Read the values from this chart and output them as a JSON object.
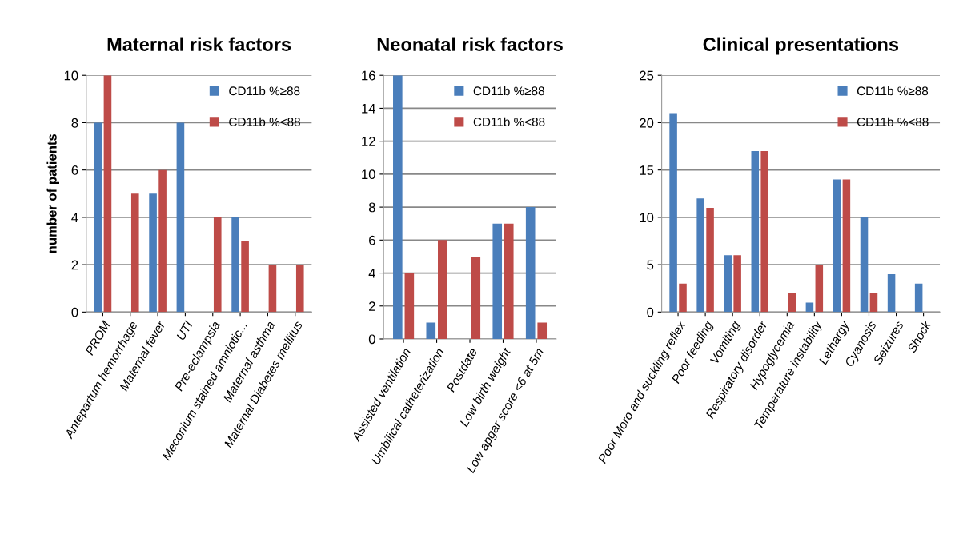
{
  "chart_data": [
    {
      "type": "bar",
      "title": "Maternal risk factors",
      "ylabel": "number of patients",
      "categories": [
        "PROM",
        "Antepartum hemorrhage",
        "Maternal fever",
        "UTI",
        "Pre-eclampsia",
        "Meconium stained amniotic...",
        "Maternal asthma",
        "Maternal Diabetes mellitus"
      ],
      "series": [
        {
          "name": "CD11b %≥88",
          "color": "#4a7ebb",
          "values": [
            8,
            0,
            5,
            8,
            0,
            4,
            0,
            0
          ]
        },
        {
          "name": "CD11b %<88",
          "color": "#be4b48",
          "values": [
            10,
            5,
            6,
            0,
            4,
            3,
            2,
            2
          ]
        }
      ],
      "ylim": [
        0,
        10
      ],
      "yticks": [
        0,
        2,
        4,
        6,
        8,
        10
      ],
      "grid": "y",
      "legend": "top right"
    },
    {
      "type": "bar",
      "title": "Neonatal risk factors",
      "categories": [
        "Assisted ventilation",
        "Umbilical catheterization",
        "Postdate",
        "Low birth weight",
        "Low apgar score <6 at 5m"
      ],
      "series": [
        {
          "name": "CD11b %≥88",
          "color": "#4a7ebb",
          "values": [
            16,
            1,
            0,
            7,
            8
          ]
        },
        {
          "name": "CD11b %<88",
          "color": "#be4b48",
          "values": [
            4,
            6,
            5,
            7,
            1
          ]
        }
      ],
      "ylim": [
        0,
        16
      ],
      "yticks": [
        0,
        2,
        4,
        6,
        8,
        10,
        12,
        14,
        16
      ],
      "grid": "y",
      "legend": "top right"
    },
    {
      "type": "bar",
      "title": "Clinical presentations",
      "categories": [
        "Poor Moro and suckling reflex",
        "Poor feeding",
        "Vomiting",
        "Respiratory disorder",
        "Hypoglycemia",
        "Temperature instability",
        "Lethargy",
        "Cyanosis",
        "Seizures",
        "Shock"
      ],
      "series": [
        {
          "name": "CD11b %≥88",
          "color": "#4a7ebb",
          "values": [
            21,
            12,
            6,
            17,
            0,
            1,
            14,
            10,
            4,
            3
          ]
        },
        {
          "name": "CD11b %<88",
          "color": "#be4b48",
          "values": [
            3,
            11,
            6,
            17,
            2,
            5,
            14,
            2,
            0,
            0
          ]
        }
      ],
      "ylim": [
        0,
        25
      ],
      "yticks": [
        0,
        5,
        10,
        15,
        20,
        25
      ],
      "grid": "y",
      "legend": "top right"
    }
  ]
}
